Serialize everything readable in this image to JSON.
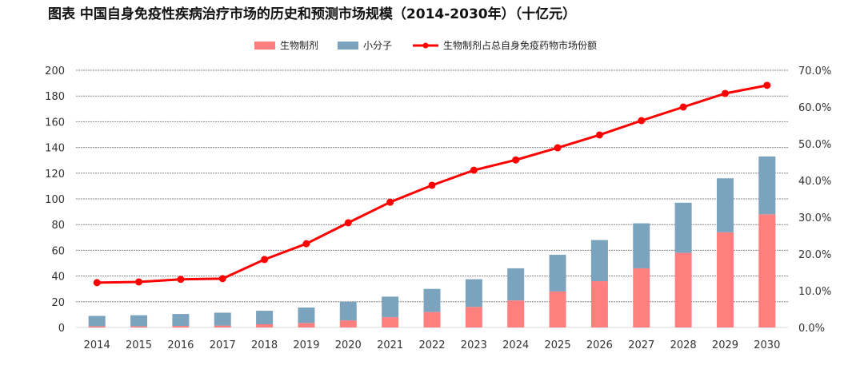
{
  "title": "图表  中国自身免疫性疾病治疗市场的历史和预测市场规模（2014-2030年）（十亿元）",
  "chart_data": {
    "type": "bar+line",
    "stacked": true,
    "categories": [
      "2014",
      "2015",
      "2016",
      "2017",
      "2018",
      "2019",
      "2020",
      "2021",
      "2022",
      "2023",
      "2024",
      "2025",
      "2026",
      "2027",
      "2028",
      "2029",
      "2030"
    ],
    "series": [
      {
        "name": "生物制剂",
        "type": "bar",
        "axis": "left",
        "color": "#FF7F7F",
        "values": [
          1,
          1,
          1.2,
          1.5,
          2.5,
          3.5,
          5.5,
          8,
          12,
          16,
          21,
          28,
          36,
          46,
          58,
          74,
          88
        ]
      },
      {
        "name": "小分子",
        "type": "bar",
        "axis": "left",
        "color": "#7BA3BE",
        "values": [
          8,
          8.5,
          9.3,
          10,
          10.5,
          12,
          14.5,
          16,
          18,
          21.5,
          25,
          28.5,
          32,
          35,
          39,
          42,
          45
        ]
      },
      {
        "name": "生物制剂占总自身免疫药物市场份额",
        "type": "line",
        "axis": "right",
        "color": "#FF0000",
        "values": [
          12.2,
          12.4,
          13.1,
          13.3,
          18.5,
          22.8,
          28.5,
          34.1,
          38.7,
          42.8,
          45.6,
          48.9,
          52.4,
          56.3,
          60.0,
          63.7,
          65.9
        ]
      }
    ],
    "y_left": {
      "range": [
        0,
        200
      ],
      "ticks": [
        "0",
        "20",
        "40",
        "60",
        "80",
        "100",
        "120",
        "140",
        "160",
        "180",
        "200"
      ]
    },
    "y_right": {
      "range": [
        0,
        70
      ],
      "ticks": [
        "0.0%",
        "10.0%",
        "20.0%",
        "30.0%",
        "40.0%",
        "50.0%",
        "60.0%",
        "70.0%"
      ]
    },
    "grid": true,
    "legend_position": "top"
  }
}
